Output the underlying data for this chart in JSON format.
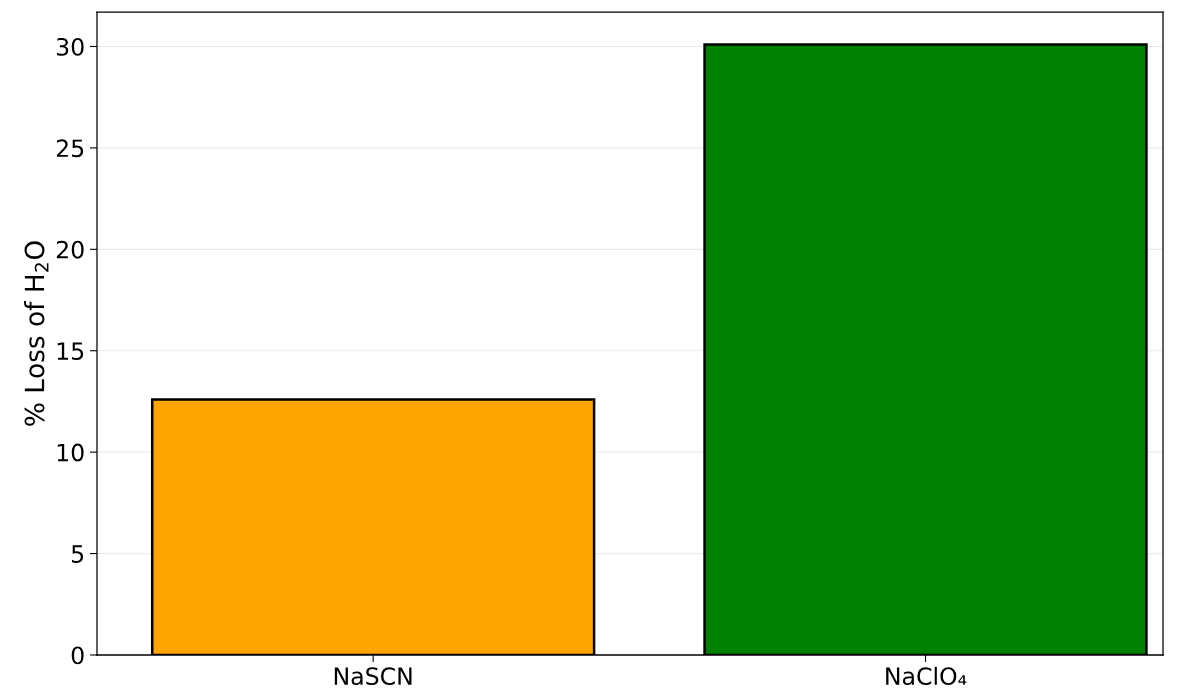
{
  "chart_data": {
    "type": "bar",
    "ylabel": "% Loss of H$_{2}$O",
    "categories": [
      "NaSCN",
      "NaClO₄"
    ],
    "values": [
      12.6,
      30.1
    ],
    "colors": [
      "#ffa500",
      "#008000"
    ],
    "ylim": [
      0,
      31.7
    ],
    "yticks": [
      0,
      5,
      10,
      15,
      20,
      25,
      30
    ],
    "grid": "y"
  }
}
